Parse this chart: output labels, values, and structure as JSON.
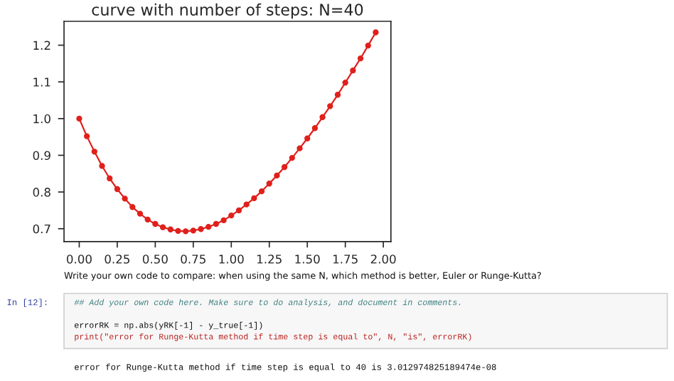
{
  "chart_data": {
    "type": "line",
    "title": "curve with number of steps: N=40",
    "x": [
      0,
      0.05,
      0.1,
      0.15,
      0.2,
      0.25,
      0.3,
      0.35,
      0.4,
      0.45,
      0.5,
      0.55,
      0.6,
      0.65,
      0.7,
      0.75,
      0.8,
      0.85,
      0.9,
      0.95,
      1.0,
      1.05,
      1.1,
      1.15,
      1.2,
      1.25,
      1.3,
      1.35,
      1.4,
      1.45,
      1.5,
      1.55,
      1.6,
      1.65,
      1.7,
      1.75,
      1.8,
      1.85,
      1.9,
      1.95
    ],
    "series": [
      {
        "color": "#e0201b",
        "values": [
          1.0,
          0.952,
          0.91,
          0.871,
          0.837,
          0.808,
          0.782,
          0.759,
          0.741,
          0.725,
          0.713,
          0.704,
          0.698,
          0.694,
          0.693,
          0.695,
          0.699,
          0.705,
          0.713,
          0.723,
          0.736,
          0.75,
          0.766,
          0.783,
          0.802,
          0.823,
          0.845,
          0.868,
          0.893,
          0.919,
          0.946,
          0.974,
          1.004,
          1.034,
          1.065,
          1.098,
          1.131,
          1.164,
          1.199,
          1.235
        ]
      }
    ],
    "xlim": [
      -0.1,
      2.05
    ],
    "ylim": [
      0.665,
      1.265
    ],
    "xticks": [
      {
        "value": 0,
        "label": "0.00"
      },
      0.25,
      {
        "value": 0.5,
        "label": "0.50"
      },
      0.75,
      {
        "value": 1,
        "label": "1.00"
      },
      1.25,
      {
        "value": 1.5,
        "label": "1.50"
      },
      1.75,
      {
        "value": 2,
        "label": "2.00"
      }
    ],
    "yticks": [
      0.7,
      0.8,
      0.9,
      {
        "value": 1,
        "label": "1.0"
      },
      1.1,
      1.2
    ],
    "grid": false,
    "marker": "circle",
    "line_style": "solid",
    "annotations": [
      "Write your own code to compare: when using the same N, which method is better, Euler or Runge-Kutta?",
      "In [12]:",
      "## Add your own code here. Make sure to do analysis, and document in comments.",
      "errorRK = np.abs(yRK[-1] - y_true[-1])",
      "print(\"error for Runge-Kutta method if time step is equal to\", N, \"is\", errorRK)",
      "error for Runge-Kutta method if time step is equal to 40 is 3.012974825189474e-08"
    ]
  }
}
